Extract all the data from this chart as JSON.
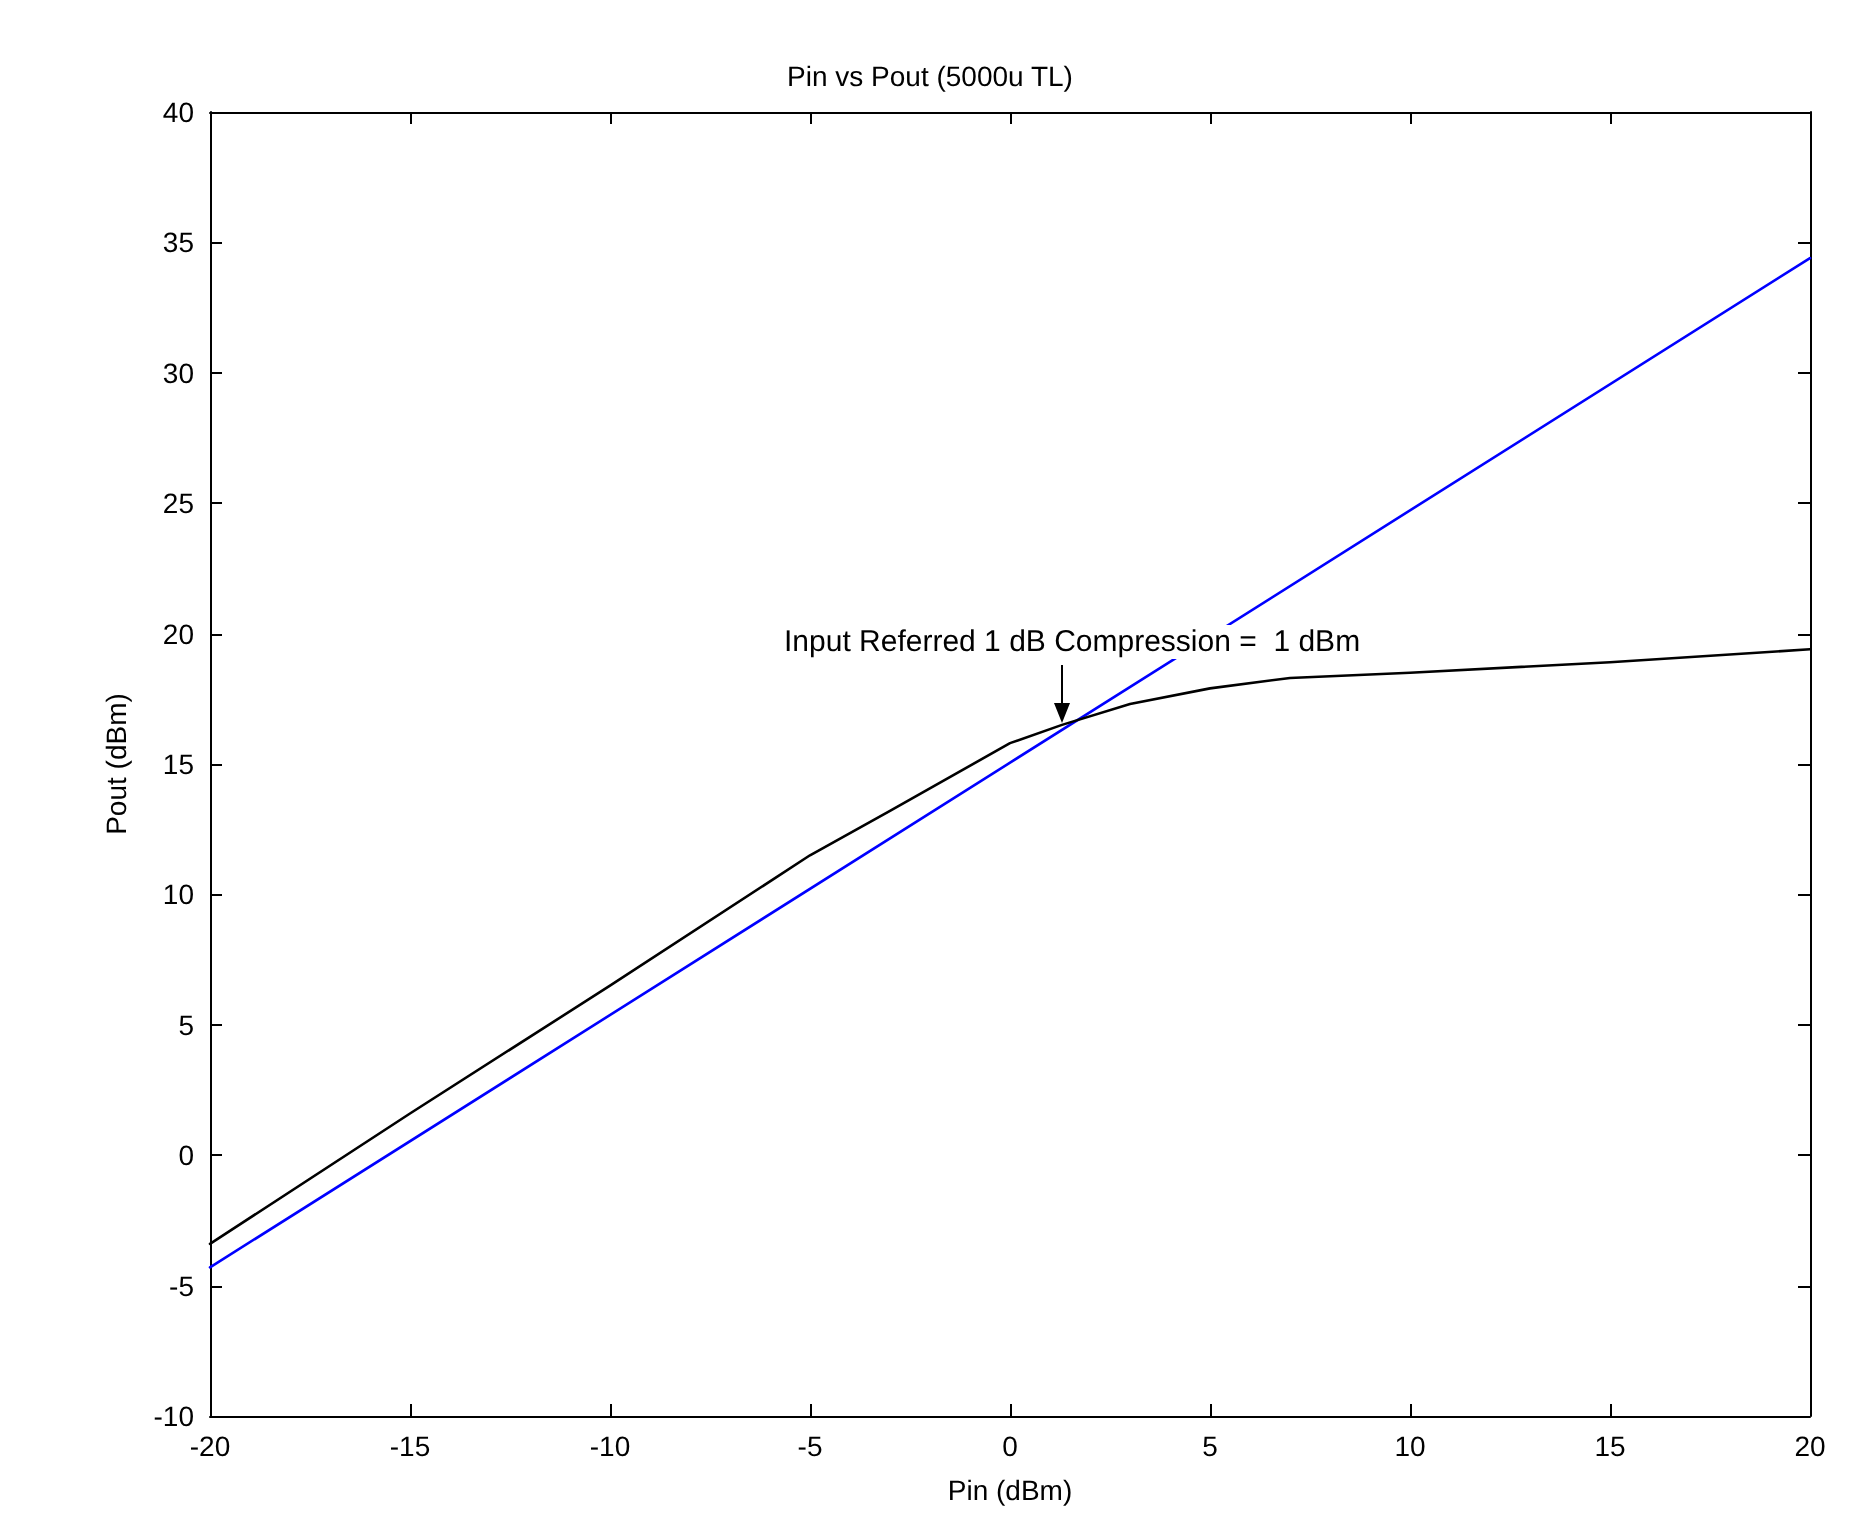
{
  "chart_data": {
    "type": "line",
    "title": "Pin vs Pout (5000u TL)",
    "xlabel": "Pin (dBm)",
    "ylabel": "Pout (dBm)",
    "xlim": [
      -20,
      20
    ],
    "xticks": [
      -20,
      -15,
      -10,
      -5,
      0,
      5,
      10,
      15,
      20
    ],
    "ylim": [
      -10,
      40
    ],
    "yticks": [
      -10,
      -5,
      0,
      5,
      10,
      15,
      20,
      25,
      30,
      35,
      40
    ],
    "grid": false,
    "marker": "none",
    "line_style": "solid",
    "series": [
      {
        "color": "#0000ff",
        "x": [
          -20,
          20
        ],
        "values": [
          -4.3,
          34.4
        ]
      },
      {
        "color": "#000000",
        "x": [
          -20,
          -15,
          -10,
          -5,
          -3,
          0,
          1.3,
          3,
          5,
          7,
          10,
          15,
          20
        ],
        "values": [
          -3.4,
          1.6,
          6.5,
          11.5,
          13.2,
          15.8,
          16.5,
          17.3,
          17.9,
          18.3,
          18.5,
          18.9,
          19.4
        ]
      }
    ],
    "annotations": [
      {
        "text": "Input Referred 1 dB Compression =  1 dBm",
        "x": 1.3,
        "y": 16.5
      }
    ]
  }
}
